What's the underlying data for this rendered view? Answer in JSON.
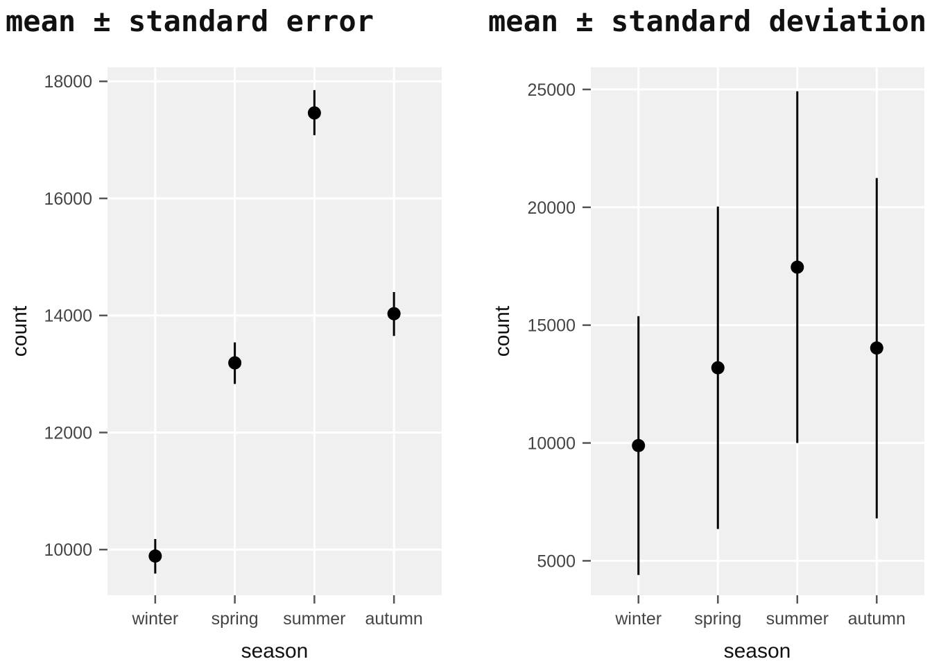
{
  "chart_data": [
    {
      "type": "scatter",
      "title": "mean ± standard error",
      "xlabel": "season",
      "ylabel": "count",
      "categories": [
        "winter",
        "spring",
        "summer",
        "autumn"
      ],
      "series": [
        {
          "values": [
            9890,
            13190,
            17460,
            14030
          ],
          "lower": [
            9590,
            12830,
            17080,
            13650
          ],
          "upper": [
            10180,
            13540,
            17850,
            14400
          ]
        }
      ],
      "ylim": [
        9220,
        18240
      ],
      "yticks": [
        10000,
        12000,
        14000,
        16000,
        18000
      ],
      "grid": true,
      "legend": "none"
    },
    {
      "type": "scatter",
      "title": "mean ± standard deviation",
      "xlabel": "season",
      "ylabel": "count",
      "categories": [
        "winter",
        "spring",
        "summer",
        "autumn"
      ],
      "series": [
        {
          "values": [
            9890,
            13190,
            17460,
            14030
          ],
          "lower": [
            4400,
            6350,
            10000,
            6800
          ],
          "upper": [
            15380,
            20030,
            24920,
            21240
          ]
        }
      ],
      "ylim": [
        3540,
        25940
      ],
      "yticks": [
        5000,
        10000,
        15000,
        20000,
        25000
      ],
      "grid": true,
      "legend": "none"
    }
  ],
  "colors": {
    "panel_background": "#f0f0f0",
    "grid": "#ffffff",
    "points": "#000000",
    "tick_labels": "#444444",
    "axis_labels": "#111111"
  }
}
